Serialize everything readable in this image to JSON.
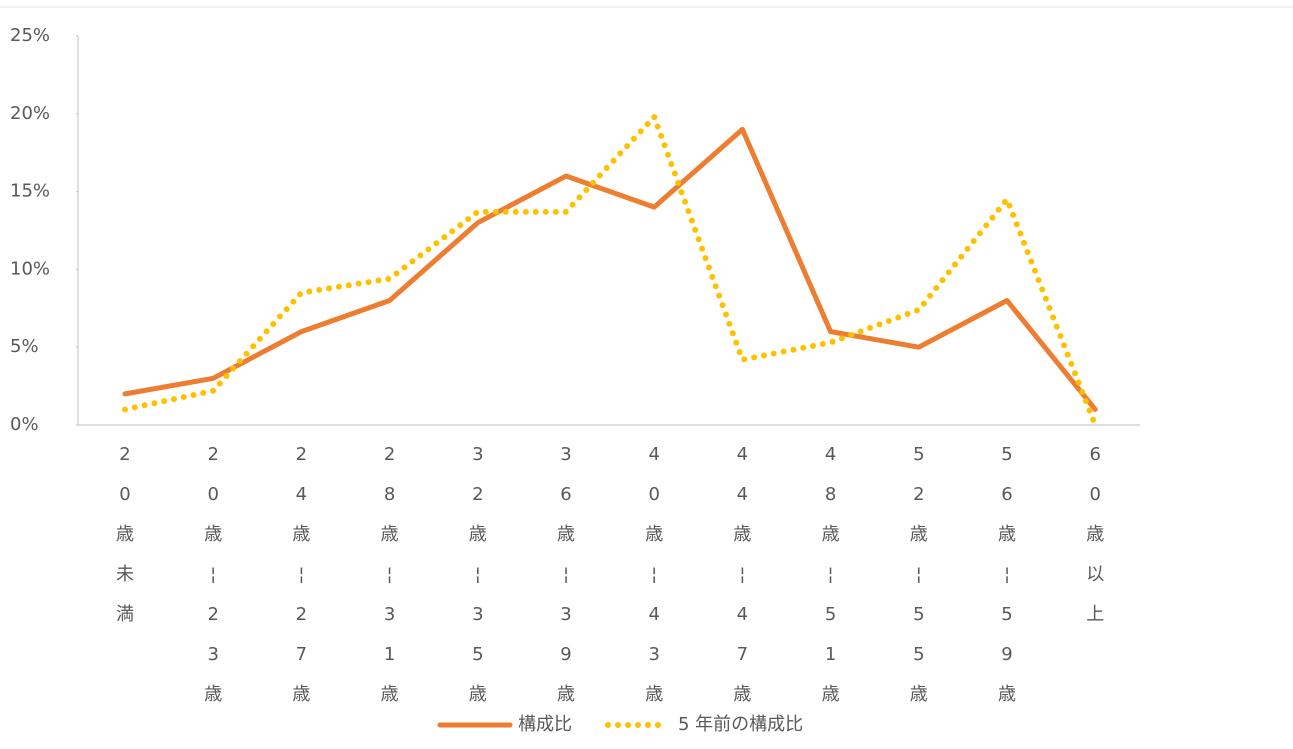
{
  "chart_data": {
    "type": "line",
    "categories": [
      "20歳未満",
      "20歳¦23歳",
      "24歳¦27歳",
      "28歳¦31歳",
      "32歳¦35歳",
      "36歳¦39歳",
      "40歳¦43歳",
      "44歳¦47歳",
      "48歳¦51歳",
      "52歳¦55歳",
      "56歳¦59歳",
      "60歳以上"
    ],
    "series": [
      {
        "name": "構成比",
        "color": "#ED7D31",
        "style": "solid",
        "values": [
          2,
          3,
          6,
          8,
          13,
          16,
          14,
          19,
          6,
          5,
          8,
          1
        ]
      },
      {
        "name": "5 年前の構成比",
        "color": "#FFC000",
        "style": "dotted",
        "values": [
          1,
          2.2,
          8.5,
          9.4,
          13.7,
          13.7,
          19.8,
          4.2,
          5.3,
          7.4,
          14.5,
          0
        ]
      }
    ],
    "ylim": [
      0,
      25
    ],
    "yticks": [
      {
        "value": 0,
        "label": "0%"
      },
      {
        "value": 5,
        "label": "5%"
      },
      {
        "value": 10,
        "label": "10%"
      },
      {
        "value": 15,
        "label": "15%"
      },
      {
        "value": 20,
        "label": "20%"
      },
      {
        "value": 25,
        "label": "25%"
      }
    ],
    "grid": false,
    "legend": "bottom"
  }
}
